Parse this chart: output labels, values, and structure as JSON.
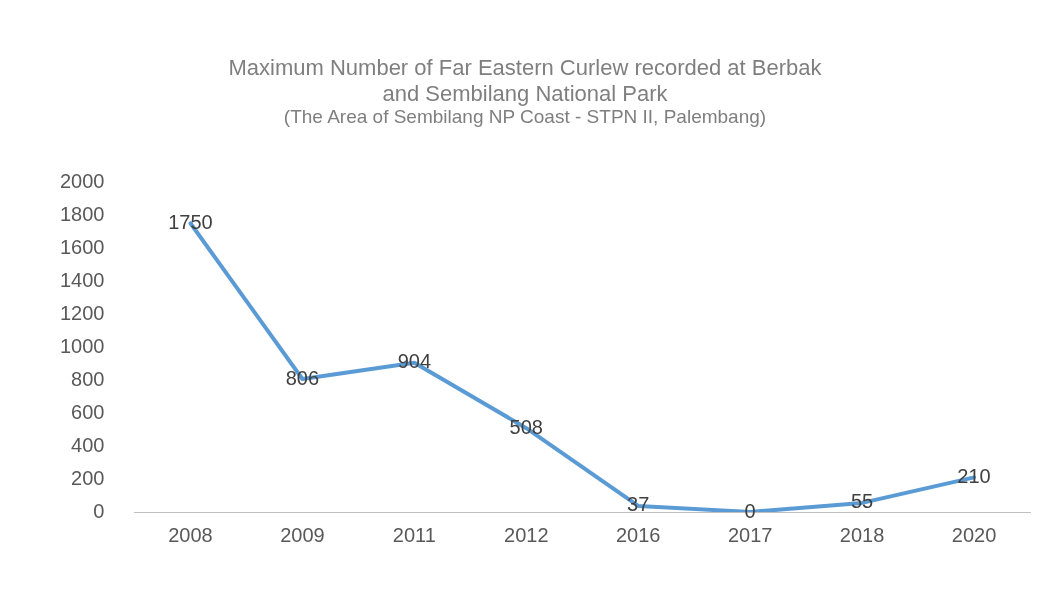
{
  "chart_data": {
    "type": "line",
    "title": "Maximum Number of Far Eastern Curlew recorded at Berbak and Sembilang National Park",
    "subtitle": "(The Area of Sembilang NP Coast - STPN II, Palembang)",
    "categories": [
      "2008",
      "2009",
      "2011",
      "2012",
      "2016",
      "2017",
      "2018",
      "2020"
    ],
    "series": [
      {
        "color": "#5b9bd5",
        "values": [
          1750,
          806,
          904,
          508,
          37,
          0,
          55,
          210
        ]
      }
    ],
    "ylim": [
      0,
      2000
    ],
    "yticks": [
      0,
      200,
      400,
      600,
      800,
      1000,
      1200,
      1400,
      1600,
      1800,
      2000
    ],
    "data_labels": true,
    "grid": false,
    "legend": false,
    "marker": "none",
    "line_style": "solid"
  }
}
